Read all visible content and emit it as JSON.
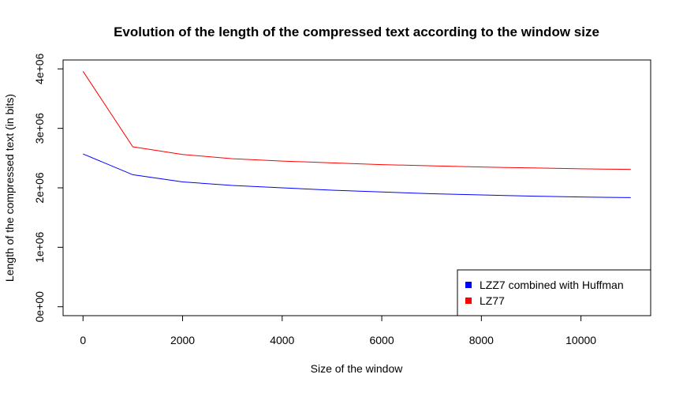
{
  "chart_data": {
    "type": "line",
    "title": "Evolution of the length of the compressed text according to the window size",
    "xlabel": "Size of the window",
    "ylabel": "Length of the compressed text (in bits)",
    "xlim": [
      -400,
      11400
    ],
    "ylim": [
      -150000,
      4150000
    ],
    "x_ticks": [
      0,
      2000,
      4000,
      6000,
      8000,
      10000
    ],
    "x_tick_labels": [
      "0",
      "2000",
      "4000",
      "6000",
      "8000",
      "10000"
    ],
    "y_ticks": [
      0,
      1000000,
      2000000,
      3000000,
      4000000
    ],
    "y_tick_labels": [
      "0e+00",
      "1e+06",
      "2e+06",
      "3e+06",
      "4e+06"
    ],
    "x": [
      0,
      1000,
      2000,
      3000,
      4000,
      5000,
      6000,
      7000,
      8000,
      9000,
      10000,
      11000
    ],
    "series": [
      {
        "name": "LZZ7 combined with Huffman",
        "color": "#0000ff",
        "values": [
          2570000,
          2220000,
          2100000,
          2040000,
          2000000,
          1960000,
          1930000,
          1900000,
          1880000,
          1860000,
          1845000,
          1835000
        ]
      },
      {
        "name": "LZ77",
        "color": "#ff0000",
        "values": [
          3960000,
          2690000,
          2560000,
          2490000,
          2450000,
          2420000,
          2390000,
          2370000,
          2350000,
          2335000,
          2320000,
          2310000
        ]
      }
    ],
    "grid": false,
    "legend_position": "bottom-right"
  }
}
